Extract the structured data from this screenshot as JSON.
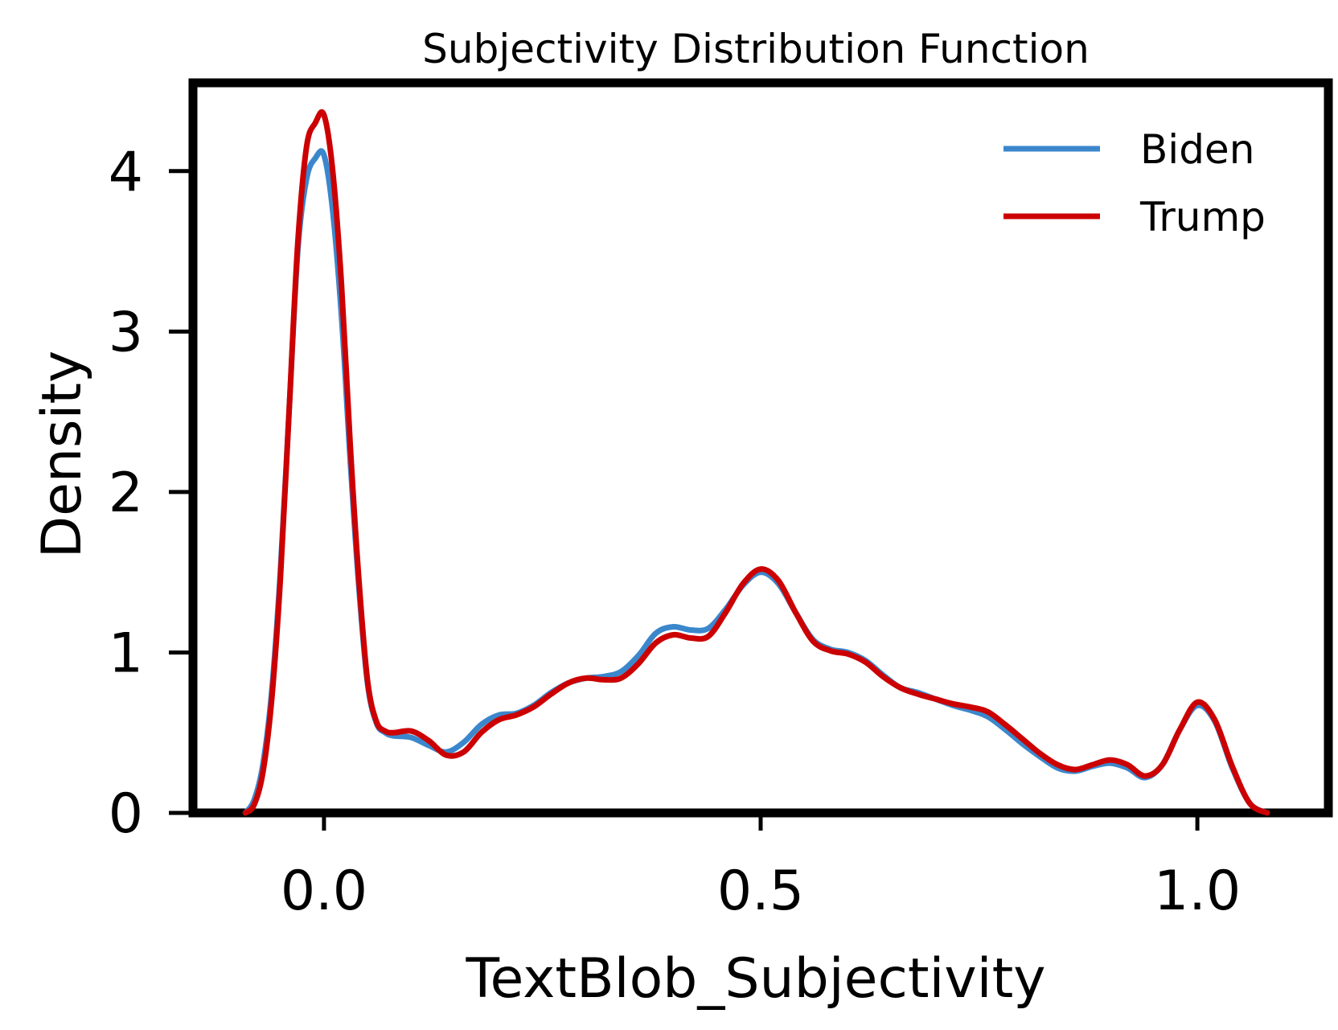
{
  "chart_data": {
    "type": "line",
    "title": "Subjectivity Distribution Function",
    "xlabel": "TextBlob_Subjectivity",
    "ylabel": "Density",
    "xlim": [
      -0.15,
      1.15
    ],
    "ylim": [
      0,
      4.5
    ],
    "grid": false,
    "legend_position": "top-right",
    "x_ticks": [
      0.0,
      0.5,
      1.0
    ],
    "x_tick_labels": [
      "0.0",
      "0.5",
      "1.0"
    ],
    "y_ticks": [
      0,
      1,
      2,
      3,
      4
    ],
    "y_tick_labels": [
      "0",
      "1",
      "2",
      "3",
      "4"
    ],
    "series": [
      {
        "name": "Biden",
        "color": "#3b87cc",
        "x": [
          -0.09,
          -0.08,
          -0.07,
          -0.06,
          -0.05,
          -0.04,
          -0.03,
          -0.02,
          -0.01,
          0.0,
          0.01,
          0.02,
          0.03,
          0.04,
          0.05,
          0.06,
          0.07,
          0.08,
          0.1,
          0.12,
          0.14,
          0.16,
          0.18,
          0.2,
          0.22,
          0.24,
          0.26,
          0.28,
          0.3,
          0.32,
          0.34,
          0.36,
          0.38,
          0.4,
          0.42,
          0.44,
          0.46,
          0.48,
          0.5,
          0.52,
          0.54,
          0.56,
          0.58,
          0.6,
          0.62,
          0.64,
          0.66,
          0.68,
          0.7,
          0.72,
          0.74,
          0.76,
          0.78,
          0.8,
          0.82,
          0.84,
          0.86,
          0.88,
          0.9,
          0.92,
          0.94,
          0.96,
          0.98,
          1.0,
          1.02,
          1.04,
          1.06,
          1.08
        ],
        "y": [
          0.0,
          0.08,
          0.3,
          0.75,
          1.5,
          2.5,
          3.5,
          3.95,
          4.08,
          4.1,
          3.75,
          3.1,
          2.2,
          1.4,
          0.8,
          0.56,
          0.5,
          0.48,
          0.47,
          0.42,
          0.38,
          0.44,
          0.55,
          0.61,
          0.62,
          0.67,
          0.75,
          0.81,
          0.84,
          0.85,
          0.88,
          0.98,
          1.12,
          1.16,
          1.14,
          1.15,
          1.27,
          1.42,
          1.5,
          1.43,
          1.25,
          1.08,
          1.02,
          1.0,
          0.95,
          0.86,
          0.78,
          0.75,
          0.71,
          0.67,
          0.64,
          0.6,
          0.52,
          0.43,
          0.35,
          0.28,
          0.26,
          0.29,
          0.31,
          0.28,
          0.22,
          0.3,
          0.52,
          0.67,
          0.57,
          0.28,
          0.06,
          0.0
        ]
      },
      {
        "name": "Trump",
        "color": "#cc0000",
        "x": [
          -0.09,
          -0.08,
          -0.07,
          -0.06,
          -0.05,
          -0.04,
          -0.03,
          -0.02,
          -0.01,
          0.0,
          0.01,
          0.02,
          0.03,
          0.04,
          0.05,
          0.06,
          0.07,
          0.08,
          0.1,
          0.12,
          0.14,
          0.16,
          0.18,
          0.2,
          0.22,
          0.24,
          0.26,
          0.28,
          0.3,
          0.32,
          0.34,
          0.36,
          0.38,
          0.4,
          0.42,
          0.44,
          0.46,
          0.48,
          0.5,
          0.52,
          0.54,
          0.56,
          0.58,
          0.6,
          0.62,
          0.64,
          0.66,
          0.68,
          0.7,
          0.72,
          0.74,
          0.76,
          0.78,
          0.8,
          0.82,
          0.84,
          0.86,
          0.88,
          0.9,
          0.92,
          0.94,
          0.96,
          0.98,
          1.0,
          1.02,
          1.04,
          1.06,
          1.08
        ],
        "y": [
          0.0,
          0.05,
          0.25,
          0.7,
          1.45,
          2.5,
          3.55,
          4.15,
          4.3,
          4.35,
          4.0,
          3.3,
          2.3,
          1.45,
          0.82,
          0.57,
          0.51,
          0.5,
          0.51,
          0.45,
          0.36,
          0.38,
          0.5,
          0.58,
          0.61,
          0.66,
          0.74,
          0.81,
          0.84,
          0.83,
          0.84,
          0.93,
          1.06,
          1.11,
          1.09,
          1.1,
          1.25,
          1.43,
          1.52,
          1.45,
          1.25,
          1.07,
          1.01,
          0.99,
          0.94,
          0.85,
          0.78,
          0.74,
          0.71,
          0.68,
          0.66,
          0.63,
          0.55,
          0.46,
          0.37,
          0.3,
          0.27,
          0.3,
          0.33,
          0.3,
          0.23,
          0.3,
          0.52,
          0.69,
          0.58,
          0.29,
          0.06,
          0.0
        ]
      }
    ]
  }
}
